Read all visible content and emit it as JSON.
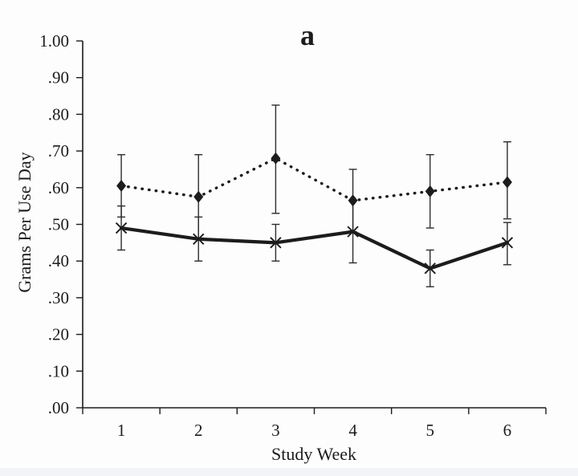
{
  "figure": {
    "panel_label": "a",
    "x_axis_title": "Study Week",
    "y_axis_title": "Grams Per Use Day"
  },
  "chart_data": {
    "type": "line",
    "title": "a",
    "xlabel": "Study Week",
    "ylabel": "Grams Per Use Day",
    "x": [
      1,
      2,
      3,
      4,
      5,
      6
    ],
    "x_tick_labels": [
      "1",
      "2",
      "3",
      "4",
      "5",
      "6"
    ],
    "y_tick_labels": [
      "1.00",
      ".90",
      ".80",
      ".70",
      ".60",
      ".50",
      ".40",
      ".30",
      ".20",
      ".10",
      ".00"
    ],
    "y_tick_values": [
      1.0,
      0.9,
      0.8,
      0.7,
      0.6,
      0.5,
      0.4,
      0.3,
      0.2,
      0.1,
      0.0
    ],
    "ylim": [
      0.0,
      1.0
    ],
    "grid": false,
    "legend": "none",
    "error_bars": true,
    "series": [
      {
        "name": "upper-dotted-diamond",
        "line_style": "dotted",
        "marker": "diamond",
        "values": [
          0.605,
          0.575,
          0.68,
          0.565,
          0.59,
          0.615
        ],
        "error_high": [
          0.69,
          0.69,
          0.825,
          0.65,
          0.69,
          0.725
        ],
        "error_low": [
          0.52,
          0.46,
          0.53,
          0.48,
          0.49,
          0.515
        ]
      },
      {
        "name": "lower-solid-x",
        "line_style": "solid",
        "marker": "x",
        "values": [
          0.49,
          0.46,
          0.45,
          0.48,
          0.38,
          0.45
        ],
        "error_high": [
          0.55,
          0.52,
          0.5,
          0.565,
          0.43,
          0.505
        ],
        "error_low": [
          0.43,
          0.4,
          0.4,
          0.395,
          0.33,
          0.39
        ]
      }
    ],
    "colors": {
      "ink": "#1c1c1c",
      "error_bar": "#2d2d2d",
      "background": "#fdfdfd",
      "footer_strip": "#f3f4f7"
    }
  }
}
